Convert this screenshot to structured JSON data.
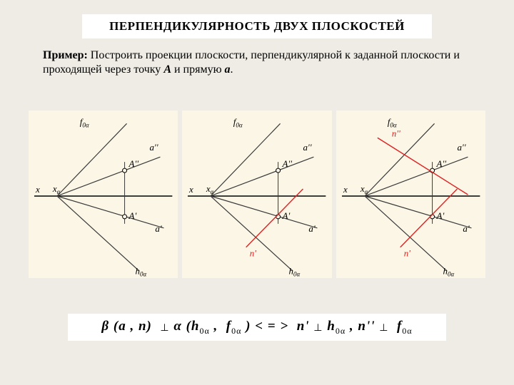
{
  "title": "ПЕРПЕНДИКУЛЯРНОСТЬ  ДВУХ  ПЛОСКОСТЕЙ",
  "example": {
    "label": "Пример:",
    "text_before": "  Построить проекции плоскости, перпендикулярной к заданной плоскости и  проходящей через точку ",
    "pointA": "А",
    "text_mid": " и прямую ",
    "line_a": "а",
    "text_after": "."
  },
  "diagrams": {
    "background": "#fbf6e6",
    "stroke_main": "#000000",
    "stroke_dark": "#3a3a3a",
    "stroke_red": "#d22",
    "stroke_width": 1.2,
    "panels": [
      {
        "labels": {
          "x": "x",
          "xa": "x",
          "xsub": "α",
          "f0a": "f",
          "f0a_sub": "0α",
          "a2": "a''",
          "A2": "A''",
          "A1": "A'",
          "a1": "a'",
          "h0a": "h",
          "h0a_sub": "0α"
        },
        "red_n1": false,
        "red_n2": false
      },
      {
        "labels": {
          "x": "x",
          "xa": "x",
          "xsub": "α",
          "f0a": "f",
          "f0a_sub": "0α",
          "a2": "a''",
          "A2": "A''",
          "A1": "A'",
          "a1": "a'",
          "h0a": "h",
          "h0a_sub": "0α",
          "n1": "n'"
        },
        "red_n1": true,
        "red_n2": false
      },
      {
        "labels": {
          "x": "x",
          "xa": "x",
          "xsub": "α",
          "f0a": "f",
          "f0a_sub": "0α",
          "a2": "a''",
          "A2": "A''",
          "A1": "A'",
          "a1": "a'",
          "h0a": "h",
          "h0a_sub": "0α",
          "n1": "n'",
          "n2": "n''"
        },
        "red_n1": true,
        "red_n2": true
      }
    ]
  },
  "formula": {
    "full": "β (a , n)  ⊥ α (h0α ,  f0α ) < = >  n' ⊥ h0α , n'' ⊥  f0α"
  },
  "colors": {
    "page_bg": "#eeece4",
    "panel_bg": "#fbf6e6",
    "box_bg": "#ffffff",
    "red": "#d22"
  }
}
